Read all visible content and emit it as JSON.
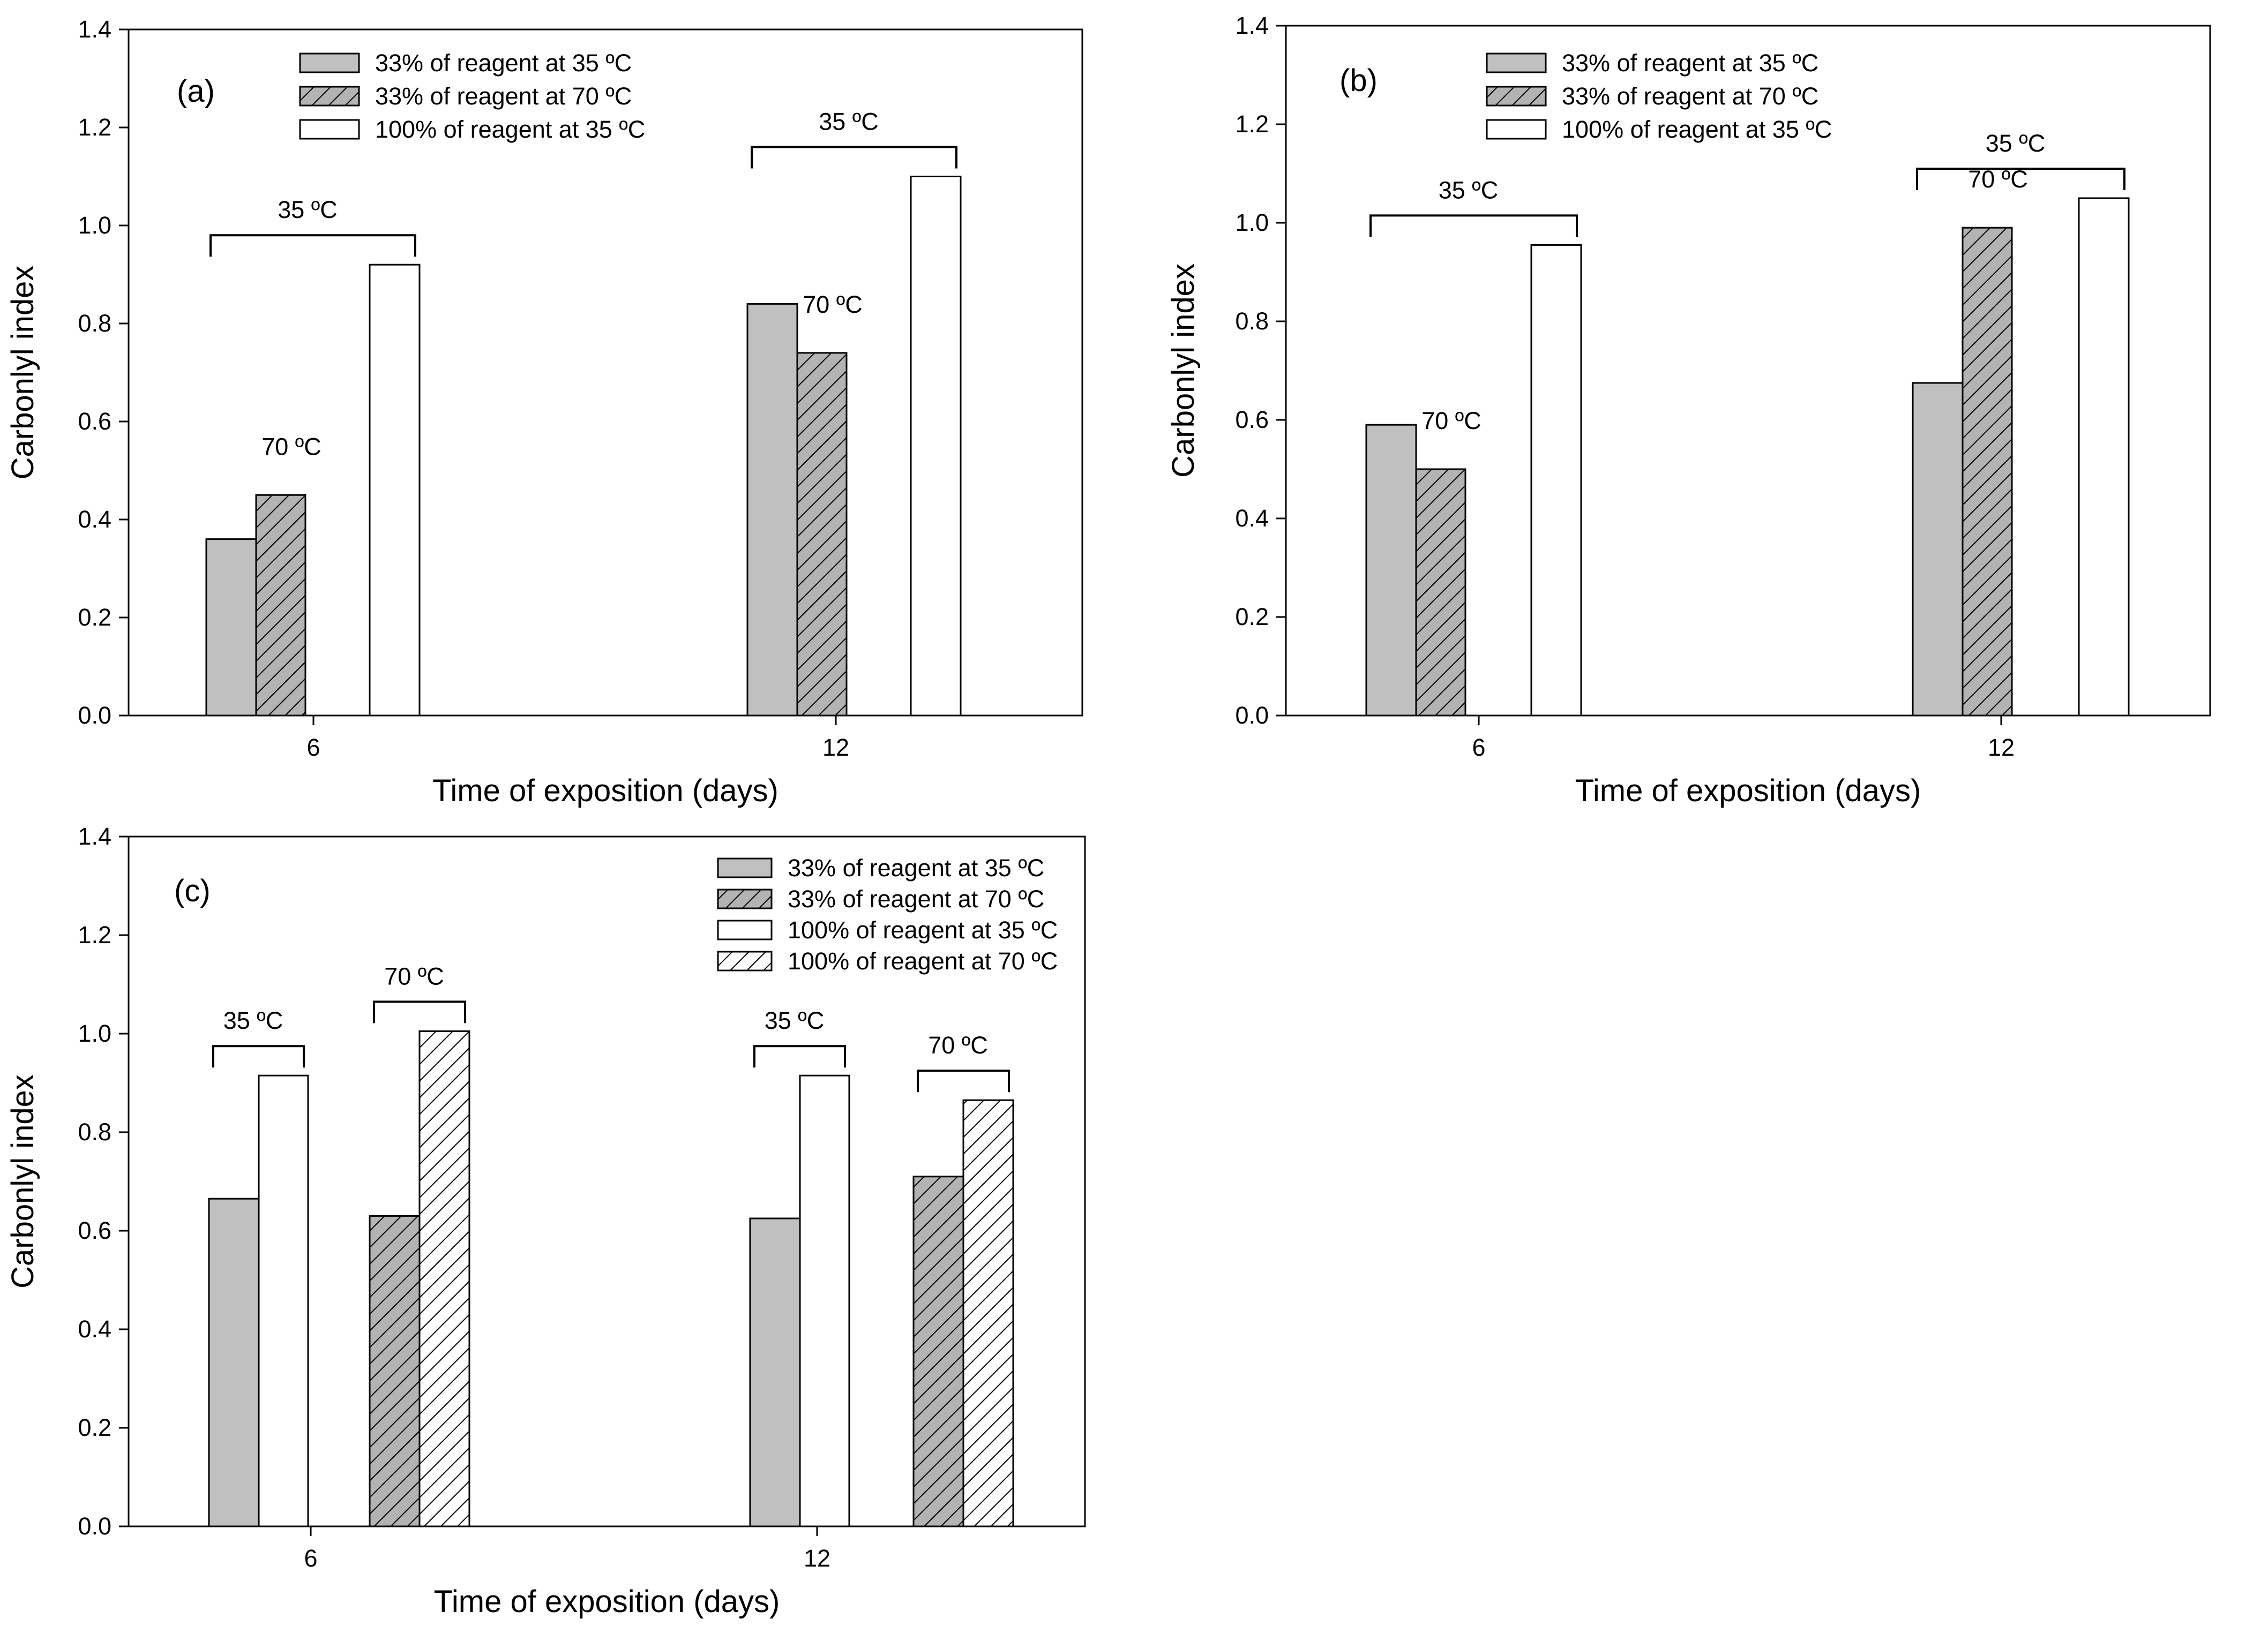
{
  "chart_data": [
    {
      "type": "bar",
      "panel_label": "(a)",
      "xlabel": "Time of exposition (days)",
      "ylabel": "Carbonlyl index",
      "ylim": [
        0,
        1.4
      ],
      "yticks": [
        "0.0",
        "0.2",
        "0.4",
        "0.6",
        "0.8",
        "1.0",
        "1.2",
        "1.4"
      ],
      "categories": [
        "6",
        "12"
      ],
      "legend_position": "top-center",
      "series": [
        {
          "name": "33% of reagent at 35 ºC",
          "style": "gray",
          "values": [
            0.36,
            0.84
          ]
        },
        {
          "name": "33% of reagent at 70 ºC",
          "style": "gray-hatch",
          "values": [
            0.45,
            0.74
          ]
        },
        {
          "name": "100% of reagent at 35 ºC",
          "style": "white",
          "values": [
            0.92,
            1.1
          ]
        }
      ],
      "annotations": [
        "35 ºC",
        "70 ºC",
        "35 ºC",
        "70 ºC"
      ]
    },
    {
      "type": "bar",
      "panel_label": "(b)",
      "xlabel": "Time of exposition (days)",
      "ylabel": "Carbonlyl index",
      "ylim": [
        0,
        1.4
      ],
      "yticks": [
        "0.0",
        "0.2",
        "0.4",
        "0.6",
        "0.8",
        "1.0",
        "1.2",
        "1.4"
      ],
      "categories": [
        "6",
        "12"
      ],
      "legend_position": "top-center",
      "series": [
        {
          "name": "33% of reagent at 35 ºC",
          "style": "gray",
          "values": [
            0.59,
            0.675
          ]
        },
        {
          "name": "33% of reagent at 70 ºC",
          "style": "gray-hatch",
          "values": [
            0.5,
            0.99
          ]
        },
        {
          "name": "100% of reagent at 35 ºC",
          "style": "white",
          "values": [
            0.955,
            1.05
          ]
        }
      ],
      "annotations": [
        "35 ºC",
        "70 ºC",
        "35 ºC",
        "70 ºC"
      ]
    },
    {
      "type": "bar",
      "panel_label": "(c)",
      "xlabel": "Time of exposition (days)",
      "ylabel": "Carbonlyl index",
      "ylim": [
        0,
        1.4
      ],
      "yticks": [
        "0.0",
        "0.2",
        "0.4",
        "0.6",
        "0.8",
        "1.0",
        "1.2",
        "1.4"
      ],
      "categories": [
        "6",
        "12"
      ],
      "legend_position": "top-right",
      "series": [
        {
          "name": "33% of reagent at 35 ºC",
          "style": "gray",
          "values": [
            0.665,
            0.625
          ]
        },
        {
          "name": "33% of reagent at 70 ºC",
          "style": "gray-hatch",
          "values": [
            0.63,
            0.71
          ]
        },
        {
          "name": "100% of reagent at 35 ºC",
          "style": "white",
          "values": [
            0.915,
            0.915
          ]
        },
        {
          "name": "100% of reagent at 70 ºC",
          "style": "white-hatch",
          "values": [
            1.005,
            0.865
          ]
        }
      ],
      "annotations": [
        "35 ºC",
        "70 ºC",
        "35 ºC",
        "70 ºC"
      ]
    }
  ]
}
